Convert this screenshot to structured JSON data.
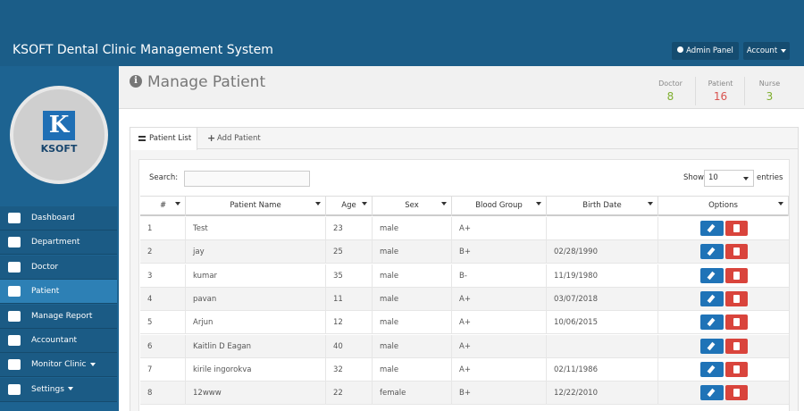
{
  "header": {
    "title": "KSOFT Dental Clinic Management System",
    "admin_panel": "Admin Panel",
    "account": "Account"
  },
  "logo": {
    "letter": "K",
    "text": "KSOFT"
  },
  "sidebar": {
    "active": 3,
    "items": [
      {
        "label": "Dashboard",
        "submenu": false
      },
      {
        "label": "Department",
        "submenu": false
      },
      {
        "label": "Doctor",
        "submenu": false
      },
      {
        "label": "Patient",
        "submenu": false
      },
      {
        "label": "Manage Report",
        "submenu": false
      },
      {
        "label": "Accountant",
        "submenu": false
      },
      {
        "label": "Monitor Clinic",
        "submenu": true
      },
      {
        "label": "Settings",
        "submenu": true
      }
    ]
  },
  "page": {
    "title": "Manage Patient",
    "stats": [
      {
        "label": "Doctor",
        "value": 8,
        "color": "#7fae2e"
      },
      {
        "label": "Patient",
        "value": 16,
        "color": "#d9534f"
      },
      {
        "label": "Nurse",
        "value": 3,
        "color": "#7fae2e"
      }
    ]
  },
  "tabs": [
    "Patient List",
    "Add Patient"
  ],
  "table": {
    "search_label": "Search:",
    "show_label": "Show",
    "page_size": 10,
    "entries_label": "entries",
    "columns": [
      "#",
      "Patient Name",
      "Age",
      "Sex",
      "Blood Group",
      "Birth Date",
      "Options"
    ],
    "rows": [
      [
        1,
        "Test",
        23,
        "male",
        "A+",
        null
      ],
      [
        2,
        "jay",
        25,
        "male",
        "B+",
        "02/28/1990"
      ],
      [
        3,
        "kumar",
        35,
        "male",
        "B-",
        "11/19/1980"
      ],
      [
        4,
        "pavan",
        11,
        "male",
        "A+",
        "03/07/2018"
      ],
      [
        5,
        "Arjun",
        12,
        "male",
        "A+",
        "10/06/2015"
      ],
      [
        6,
        "Kaitlin D Eagan",
        40,
        "male",
        "A+",
        null
      ],
      [
        7,
        "kirile ingorokva",
        32,
        "male",
        "A+",
        "02/11/1986"
      ],
      [
        8,
        "12www",
        22,
        "female",
        "B+",
        "12/22/2010"
      ]
    ]
  }
}
